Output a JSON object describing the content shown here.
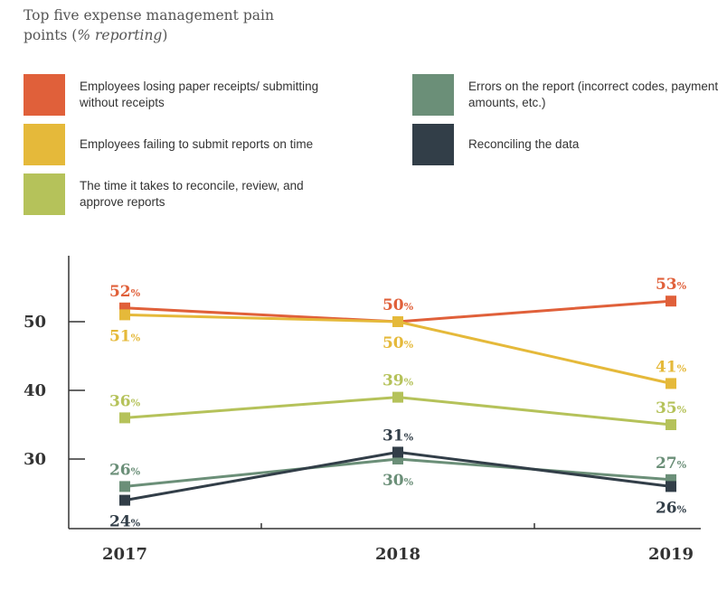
{
  "title": {
    "main": "Top five expense management pain points (",
    "italic": "% reporting",
    "close": ")"
  },
  "chart_data": {
    "type": "line",
    "title": "Top five expense management pain points (% reporting)",
    "x": [
      "2017",
      "2018",
      "2019"
    ],
    "ylim": [
      20,
      60
    ],
    "y_ticks": [
      "30",
      "40",
      "50"
    ],
    "grid": false,
    "legend_position": "top",
    "series": [
      {
        "name": "Employees losing paper receipts/ submitting without receipts",
        "color": "#e0603a",
        "values": [
          52,
          50,
          53
        ],
        "labels": [
          "52",
          "50",
          "53"
        ],
        "label_pos": [
          "above",
          "above",
          "above"
        ]
      },
      {
        "name": "Employees failing to submit reports on time",
        "color": "#e5b93a",
        "values": [
          51,
          50,
          41
        ],
        "labels": [
          "51",
          "50",
          "41"
        ],
        "label_pos": [
          "below",
          "below",
          "above"
        ]
      },
      {
        "name": "The time it takes to reconcile, review, and approve reports",
        "color": "#b5c25a",
        "values": [
          36,
          39,
          35
        ],
        "labels": [
          "36",
          "39",
          "35"
        ],
        "label_pos": [
          "above",
          "above",
          "above"
        ]
      },
      {
        "name": "Errors on the report (incorrect codes, payment amounts, etc.)",
        "color": "#6b8f78",
        "values": [
          26,
          30,
          27
        ],
        "labels": [
          "26",
          "30",
          "27"
        ],
        "label_pos": [
          "above",
          "below",
          "above"
        ]
      },
      {
        "name": "Reconciling the data",
        "color": "#323e48",
        "values": [
          24,
          31,
          26
        ],
        "labels": [
          "24",
          "31",
          "26"
        ],
        "label_pos": [
          "below",
          "above",
          "below"
        ]
      }
    ],
    "percent_suffix": "%"
  }
}
